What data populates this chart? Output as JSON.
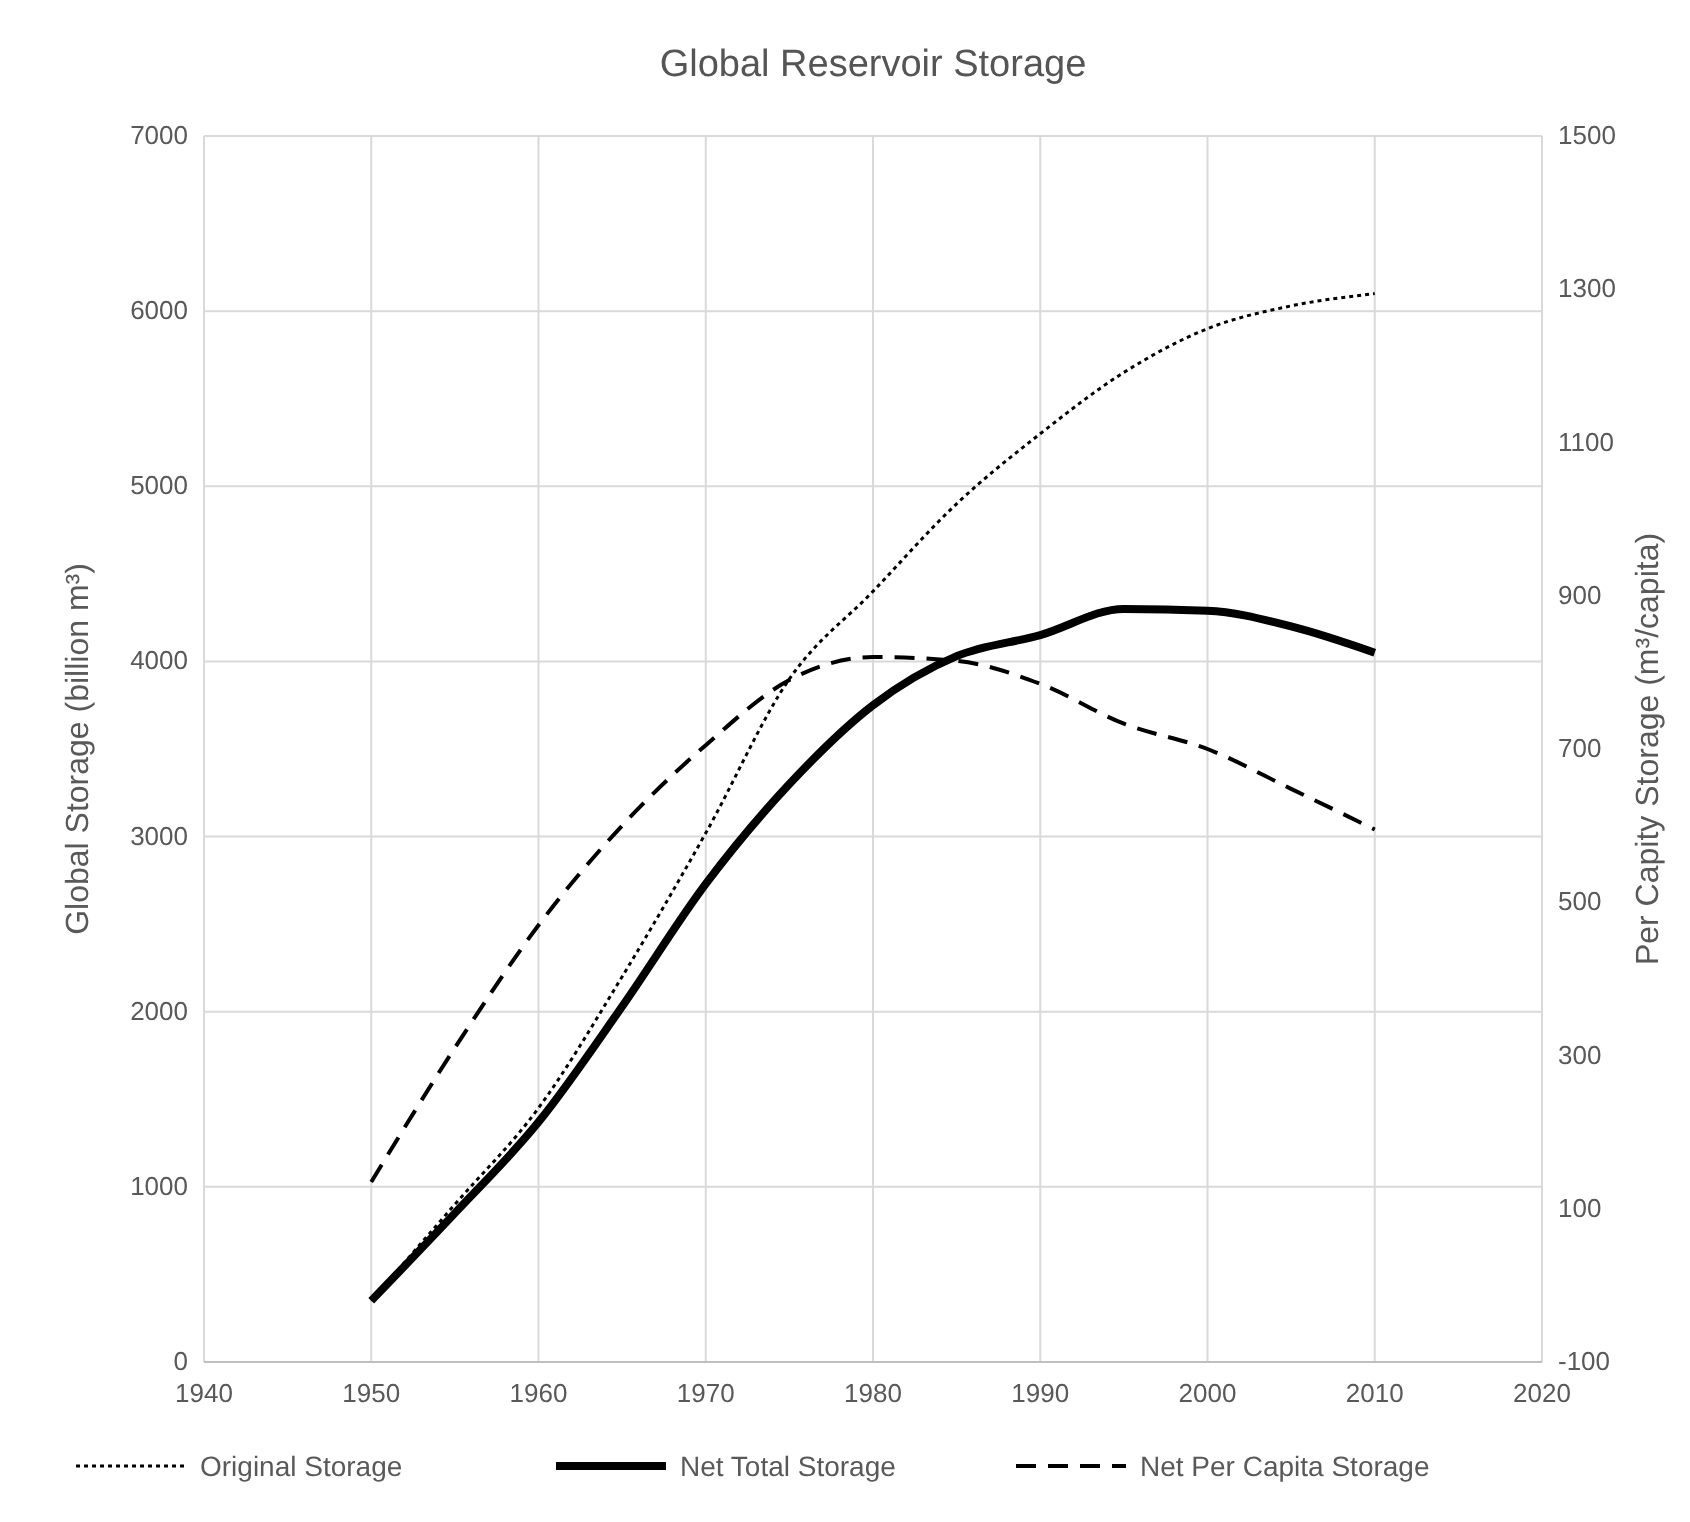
{
  "chart_data": {
    "type": "line",
    "title": "Global Reservoir Storage",
    "ylabel": "Global Storage (billion m³)",
    "y2label": "Per Capity Storage (m³/capita)",
    "xlim": [
      1940,
      2020
    ],
    "xticks": [
      1940,
      1950,
      1960,
      1970,
      1980,
      1990,
      2000,
      2010,
      2020
    ],
    "ylim": [
      0,
      7000
    ],
    "yticks": [
      0,
      1000,
      2000,
      3000,
      4000,
      5000,
      6000,
      7000
    ],
    "y2lim": [
      -100,
      1500
    ],
    "y2ticks": [
      -100,
      100,
      300,
      500,
      700,
      900,
      1100,
      1300,
      1500
    ],
    "grid": true,
    "legend": "bottom",
    "series": [
      {
        "name": "Original Storage",
        "color": "#000000",
        "line_style": "dotted",
        "x": [
          1950,
          1955,
          1960,
          1965,
          1970,
          1975,
          1980,
          1985,
          1990,
          1995,
          2000,
          2005,
          2010
        ],
        "values": [
          350,
          900,
          1450,
          2200,
          3020,
          3900,
          4400,
          4900,
          5300,
          5650,
          5900,
          6030,
          6100
        ]
      },
      {
        "name": "Net Total Storage",
        "color": "#000000",
        "line_style": "solid",
        "x": [
          1950,
          1955,
          1960,
          1965,
          1970,
          1975,
          1980,
          1985,
          1990,
          1995,
          2000,
          2005,
          2010
        ],
        "values": [
          350,
          850,
          1370,
          2030,
          2730,
          3300,
          3750,
          4030,
          4150,
          4300,
          4290,
          4200,
          4050
        ]
      },
      {
        "name": "Net Per Capita Storage",
        "color": "#000000",
        "line_style": "dashed",
        "axis": "y2",
        "x": [
          1950,
          1955,
          1960,
          1965,
          1970,
          1975,
          1980,
          1985,
          1990,
          1995,
          2000,
          2005,
          2010
        ],
        "values": [
          135,
          310,
          470,
          600,
          705,
          790,
          820,
          815,
          785,
          733,
          700,
          648,
          595
        ]
      }
    ]
  }
}
